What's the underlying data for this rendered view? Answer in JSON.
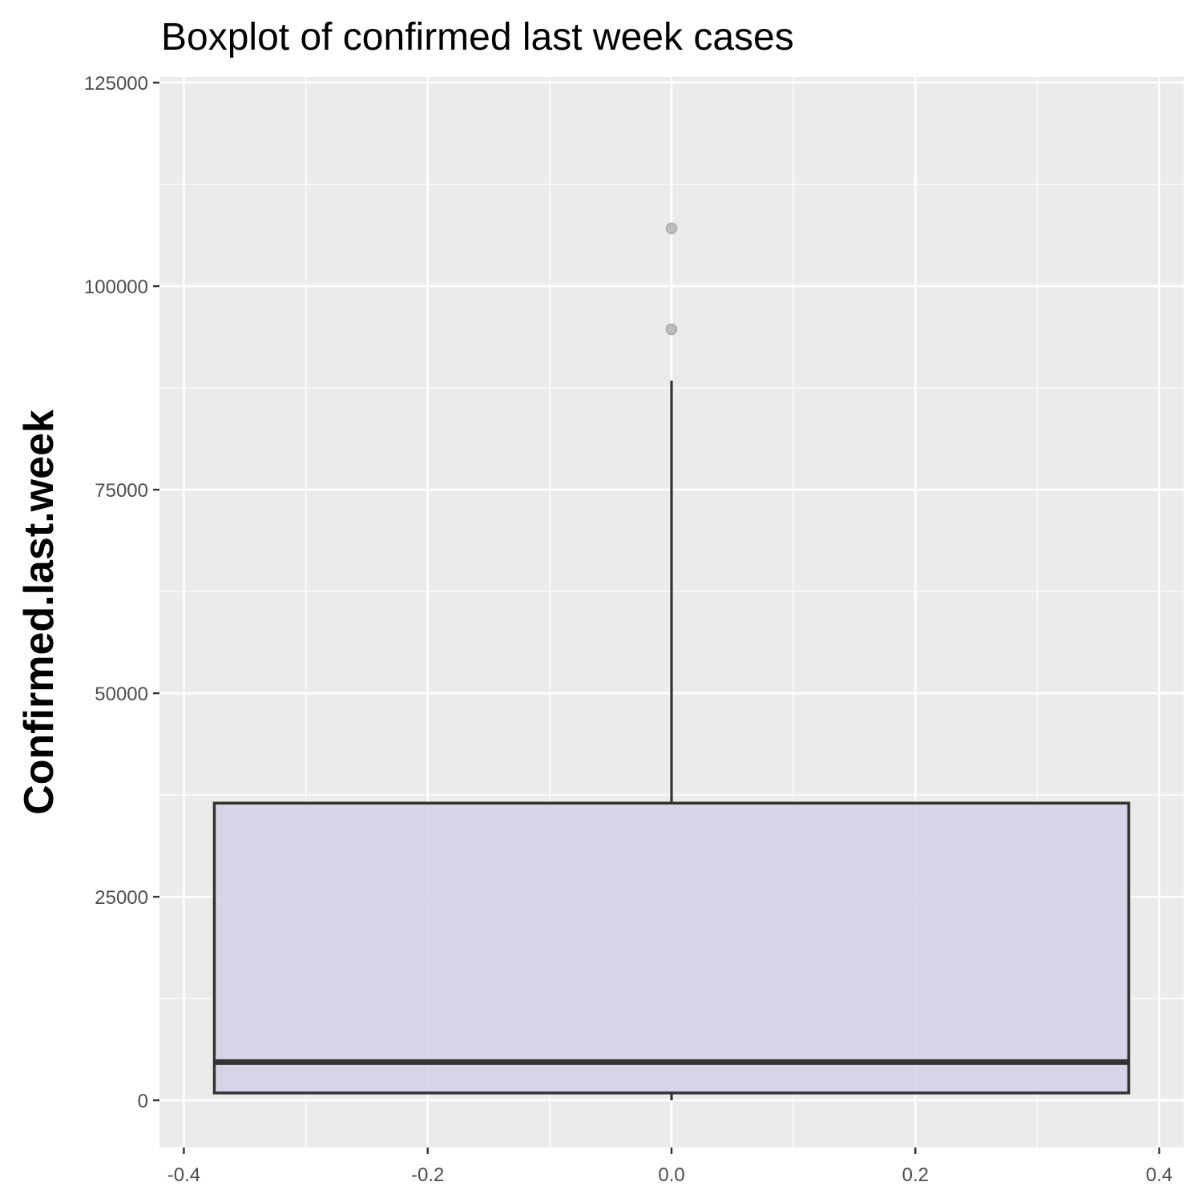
{
  "chart_data": {
    "type": "boxplot",
    "title": "Boxplot of confirmed last week cases",
    "xlabel": "",
    "ylabel": "Confirmed.last.week",
    "xlim": [
      -0.42,
      0.42
    ],
    "ylim": [
      -5800,
      125700
    ],
    "x_ticks": [
      -0.4,
      -0.2,
      0.0,
      0.2,
      0.4
    ],
    "x_tick_labels": [
      "-0.4",
      "-0.2",
      "0.0",
      "0.2",
      "0.4"
    ],
    "y_ticks": [
      0,
      25000,
      50000,
      75000,
      100000,
      125000
    ],
    "y_tick_labels": [
      "0",
      "25000",
      "50000",
      "75000",
      "100000",
      "125000"
    ],
    "box": {
      "x_center": 0.0,
      "x_min": -0.375,
      "x_max": 0.375,
      "whisker_low": 0,
      "q1": 900,
      "median": 4700,
      "q3": 36500,
      "whisker_high": 88400
    },
    "outliers": [
      94700,
      107100
    ],
    "box_fill": "#d4d0e7",
    "line_color": "#333333",
    "outlier_color": "#bdbdbd",
    "panel_background": "#ebebeb",
    "grid": true,
    "legend": "none"
  }
}
